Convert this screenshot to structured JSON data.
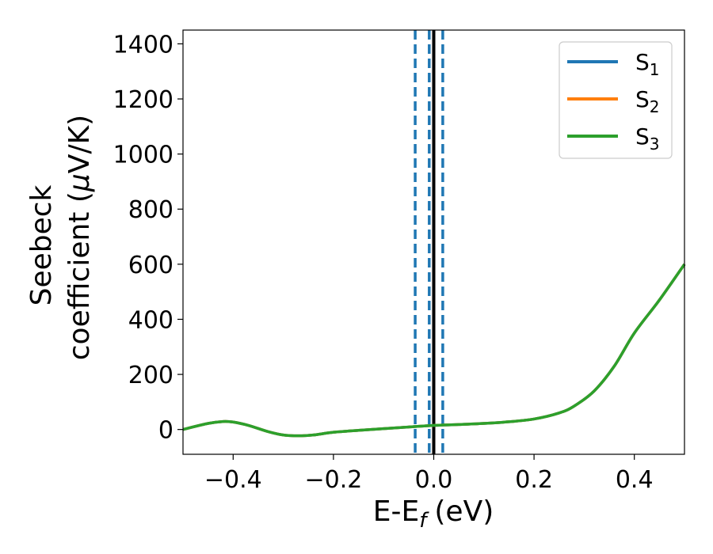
{
  "chart_data": {
    "type": "line",
    "xlabel": "E-E",
    "xlabel_sub": "f",
    "xlabel_unit": "(eV)",
    "ylabel_line1": "Seebeck",
    "ylabel_line2": "coefficient  (",
    "ylabel_mu": "μ",
    "ylabel_unit": "V/K)",
    "xlim": [
      -0.5,
      0.5
    ],
    "ylim": [
      -90,
      1450
    ],
    "xticks": [
      {
        "value": -0.4,
        "label": "−0.4"
      },
      {
        "value": -0.2,
        "label": "−0.2"
      },
      {
        "value": 0.0,
        "label": "0.0"
      },
      {
        "value": 0.2,
        "label": "0.2"
      },
      {
        "value": 0.4,
        "label": "0.4"
      }
    ],
    "yticks": [
      {
        "value": 0,
        "label": "0"
      },
      {
        "value": 200,
        "label": "200"
      },
      {
        "value": 400,
        "label": "400"
      },
      {
        "value": 600,
        "label": "600"
      },
      {
        "value": 800,
        "label": "800"
      },
      {
        "value": 1000,
        "label": "1000"
      },
      {
        "value": 1200,
        "label": "1200"
      },
      {
        "value": 1400,
        "label": "1400"
      }
    ],
    "grid": false,
    "legend_position": "top-right",
    "series": [
      {
        "name": "S",
        "sub": "1",
        "color": "#1f77b4",
        "x": [
          -0.5,
          -0.45,
          -0.42,
          -0.4,
          -0.37,
          -0.33,
          -0.3,
          -0.27,
          -0.24,
          -0.2,
          -0.15,
          -0.1,
          -0.05,
          0.0,
          0.05,
          0.1,
          0.15,
          0.2,
          0.25,
          0.28,
          0.32,
          0.36,
          0.4,
          0.45,
          0.5
        ],
        "y": [
          0,
          22,
          29,
          27,
          15,
          -8,
          -20,
          -23,
          -20,
          -10,
          -3,
          3,
          9,
          15,
          18,
          22,
          28,
          38,
          60,
          85,
          140,
          230,
          350,
          470,
          600
        ]
      },
      {
        "name": "S",
        "sub": "2",
        "color": "#ff7f0e",
        "x": [
          -0.5,
          -0.45,
          -0.42,
          -0.4,
          -0.37,
          -0.33,
          -0.3,
          -0.27,
          -0.24,
          -0.2,
          -0.15,
          -0.1,
          -0.05,
          0.0,
          0.05,
          0.1,
          0.15,
          0.2,
          0.25,
          0.28,
          0.32,
          0.36,
          0.4,
          0.45,
          0.5
        ],
        "y": [
          0,
          22,
          29,
          27,
          15,
          -8,
          -20,
          -23,
          -20,
          -10,
          -3,
          3,
          9,
          15,
          18,
          22,
          28,
          38,
          60,
          85,
          140,
          230,
          350,
          470,
          600
        ]
      },
      {
        "name": "S",
        "sub": "3",
        "color": "#2ca02c",
        "x": [
          -0.5,
          -0.45,
          -0.42,
          -0.4,
          -0.37,
          -0.33,
          -0.3,
          -0.27,
          -0.24,
          -0.2,
          -0.15,
          -0.1,
          -0.05,
          0.0,
          0.05,
          0.1,
          0.15,
          0.2,
          0.25,
          0.28,
          0.32,
          0.36,
          0.4,
          0.45,
          0.5
        ],
        "y": [
          0,
          22,
          29,
          27,
          15,
          -8,
          -20,
          -23,
          -20,
          -10,
          -3,
          3,
          9,
          15,
          18,
          22,
          28,
          38,
          60,
          85,
          140,
          230,
          350,
          470,
          600
        ]
      }
    ],
    "vlines": [
      {
        "x": -0.037,
        "style": "dashed",
        "color": "#1f77b4"
      },
      {
        "x": -0.009,
        "style": "dashed",
        "color": "#1f77b4"
      },
      {
        "x": 0.018,
        "style": "dashed",
        "color": "#1f77b4"
      },
      {
        "x": 0.0,
        "style": "solid",
        "color": "#000000"
      }
    ]
  }
}
